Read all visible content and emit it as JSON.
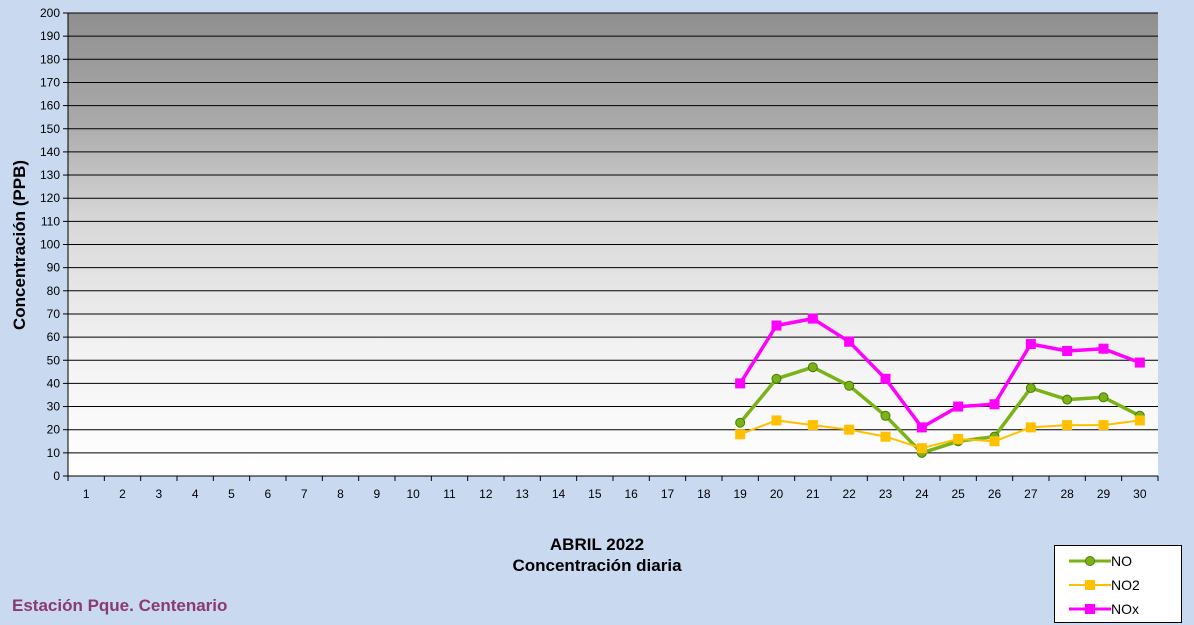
{
  "chart_data": {
    "type": "line",
    "categories": [
      "1",
      "2",
      "3",
      "4",
      "5",
      "6",
      "7",
      "8",
      "9",
      "10",
      "11",
      "12",
      "13",
      "14",
      "15",
      "16",
      "17",
      "18",
      "19",
      "20",
      "21",
      "22",
      "23",
      "24",
      "25",
      "26",
      "27",
      "28",
      "29",
      "30"
    ],
    "series": [
      {
        "name": "NO",
        "color": "#7ab317",
        "marker": "circle",
        "values": [
          null,
          null,
          null,
          null,
          null,
          null,
          null,
          null,
          null,
          null,
          null,
          null,
          null,
          null,
          null,
          null,
          null,
          null,
          23,
          42,
          47,
          39,
          26,
          10,
          15,
          17,
          38,
          33,
          34,
          26
        ]
      },
      {
        "name": "NO2",
        "color": "#ffc000",
        "marker": "square",
        "values": [
          null,
          null,
          null,
          null,
          null,
          null,
          null,
          null,
          null,
          null,
          null,
          null,
          null,
          null,
          null,
          null,
          null,
          null,
          18,
          24,
          22,
          20,
          17,
          12,
          16,
          15,
          21,
          22,
          22,
          24
        ]
      },
      {
        "name": "NOx",
        "color": "#ff00ff",
        "marker": "square",
        "values": [
          null,
          null,
          null,
          null,
          null,
          null,
          null,
          null,
          null,
          null,
          null,
          null,
          null,
          null,
          null,
          null,
          null,
          null,
          40,
          65,
          68,
          58,
          42,
          21,
          30,
          31,
          57,
          54,
          55,
          49
        ]
      }
    ],
    "yticks": [
      "0",
      "10",
      "20",
      "30",
      "40",
      "50",
      "60",
      "70",
      "80",
      "90",
      "100",
      "110",
      "120",
      "130",
      "140",
      "150",
      "160",
      "170",
      "180",
      "190",
      "200"
    ],
    "ylim": [
      0,
      200
    ],
    "ylabel": "Concentración  (PPB)",
    "xlabel_line1": "ABRIL 2022",
    "xlabel_line2": "Concentración diaria",
    "grid": true,
    "legend_position": "bottom-right"
  },
  "station": "Estación Pque. Centenario"
}
